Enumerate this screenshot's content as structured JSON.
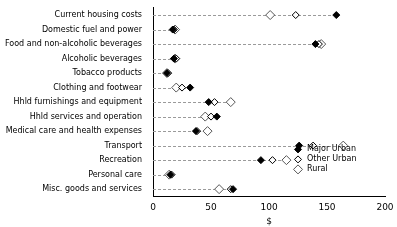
{
  "chart_data": {
    "type": "dot",
    "orientation": "horizontal",
    "categories": [
      "Current housing costs",
      "Domestic fuel and power",
      "Food and non-alcoholic beverages",
      "Alcoholic beverages",
      "Tobacco products",
      "Clothing and footwear",
      "Hhld furnishings and equipment",
      "Hhld services and operation",
      "Medical care and health expenses",
      "Transport",
      "Recreation",
      "Personal care",
      "Misc. goods and services"
    ],
    "series": [
      {
        "name": "Major Urban",
        "color": "#000000",
        "marker": "diamond",
        "values": [
          158,
          17,
          140,
          18,
          12,
          32,
          48,
          55,
          37,
          126,
          93,
          15,
          69
        ]
      },
      {
        "name": "Other Urban",
        "color": "#000000",
        "marker": "open_diamond",
        "values": [
          123,
          18,
          143,
          20,
          13,
          25,
          53,
          50,
          38,
          138,
          103,
          16,
          67
        ]
      },
      {
        "name": "Rural",
        "color": "#555555",
        "marker": "open_diamond",
        "values": [
          101,
          19,
          145,
          19,
          12,
          20,
          67,
          45,
          47,
          164,
          115,
          14,
          57
        ]
      }
    ],
    "x_label": "$",
    "xlim": [
      0,
      200
    ],
    "xticks": [
      0,
      50,
      100,
      150,
      200
    ],
    "grid": false,
    "legend": "lower right"
  }
}
